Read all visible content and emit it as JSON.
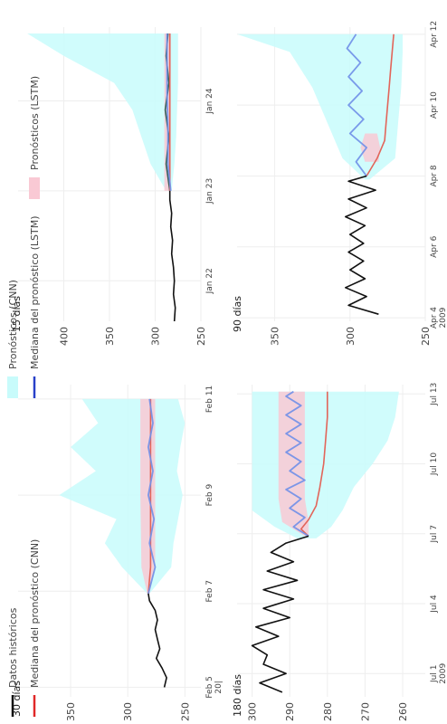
{
  "colors": {
    "history": "#111111",
    "cnn_median": "#e2655a",
    "lstm_median": "#6f8fe8",
    "cnn_band": "#c8fbfb",
    "lstm_band": "#f9c9d4",
    "grid": "#eeeeee"
  },
  "legend": {
    "placement": "bottom",
    "items": [
      {
        "label": "Datos históricos",
        "color": "#111111",
        "kind": "line"
      },
      {
        "label": "Mediana del pronóstico (CNN)",
        "color": "#e02828",
        "kind": "line"
      },
      {
        "label": "Mediana del pronóstico (LSTM)",
        "color": "#2840c8",
        "kind": "line"
      },
      {
        "label": "Pronósticos (CNN)",
        "color": "#c8fbfb",
        "kind": "band"
      },
      {
        "label": "Pronósticos (LSTM)",
        "color": "#f9c9d4",
        "kind": "band"
      }
    ]
  },
  "chart_data": [
    {
      "type": "line",
      "title": "180 días",
      "x_ticks": [
        "Jul 1\n2009",
        "Jul 4",
        "Jul 7",
        "Jul 10",
        "Jul 13"
      ],
      "y_ticks": [
        260,
        270,
        280,
        290,
        300
      ],
      "xlim": [
        0,
        13.4
      ],
      "ylim": [
        254,
        304
      ],
      "history": {
        "x": [
          0.2,
          0.6,
          1.0,
          1.4,
          1.8,
          2.2,
          2.6,
          3.0,
          3.4,
          3.8,
          4.2,
          4.6,
          5.0,
          5.4,
          5.8,
          6.2,
          6.6,
          6.9
        ],
        "y": [
          292,
          298,
          291,
          297,
          296,
          300,
          293,
          299,
          290,
          297,
          289,
          297,
          288,
          296,
          289,
          295,
          291,
          285
        ]
      },
      "cnn_median": {
        "x": [
          6.9,
          7.2,
          7.6,
          8.2,
          9.0,
          10.0,
          11.0,
          12.0,
          13.1
        ],
        "y": [
          285,
          287,
          285,
          283,
          282,
          281,
          280.5,
          280,
          280
        ]
      },
      "lstm_median": {
        "x": [
          6.9,
          7.3,
          7.7,
          8.1,
          8.5,
          8.9,
          9.3,
          9.7,
          10.1,
          10.5,
          10.9,
          11.3,
          11.7,
          12.1,
          12.5,
          12.9,
          13.1
        ],
        "y": [
          285,
          289,
          286,
          290,
          287,
          291,
          286,
          290,
          287,
          291,
          287,
          291,
          287,
          291,
          287,
          291,
          289
        ]
      },
      "cnn_band": {
        "x": [
          6.8,
          7.3,
          8.0,
          9.0,
          10.0,
          11.0,
          12.0,
          13.1
        ],
        "low": [
          283,
          279,
          276,
          273,
          268,
          264,
          262,
          261
        ],
        "high": [
          288,
          294,
          300,
          300,
          300,
          300,
          300,
          300
        ]
      },
      "lstm_band": {
        "x": [
          6.9,
          7.5,
          8.5,
          9.5,
          10.5,
          11.5,
          12.5,
          13.1
        ],
        "low": [
          285,
          285,
          286,
          286,
          286,
          286,
          286,
          286
        ],
        "high": [
          286,
          292,
          293,
          293,
          293,
          293,
          293,
          293
        ]
      }
    },
    {
      "type": "line",
      "title": "90 días",
      "x_ticks": [
        "Apr 4\n2009",
        "Apr 6",
        "Apr 8",
        "Apr 10",
        "Apr 12"
      ],
      "y_ticks": [
        250,
        300,
        350
      ],
      "xlim": [
        3.9,
        12.2
      ],
      "ylim": [
        250,
        375
      ],
      "history": {
        "x": [
          4.1,
          4.35,
          4.6,
          4.85,
          5.1,
          5.35,
          5.6,
          5.85,
          6.1,
          6.35,
          6.6,
          6.85,
          7.1,
          7.35,
          7.6,
          7.85,
          8.0
        ],
        "y": [
          281,
          301,
          289,
          303,
          290,
          300,
          291,
          301,
          291,
          300,
          290,
          303,
          289,
          301,
          283,
          301,
          289
        ]
      },
      "cnn_median": {
        "x": [
          8.0,
          8.5,
          9.0,
          9.5,
          10.0,
          10.5,
          11.0,
          11.5,
          12.0
        ],
        "y": [
          289,
          282,
          277,
          276,
          275,
          274,
          273,
          272,
          271
        ]
      },
      "lstm_median": {
        "x": [
          8.0,
          8.4,
          8.8,
          9.2,
          9.6,
          10.0,
          10.4,
          10.8,
          11.2,
          11.6,
          12.0
        ],
        "y": [
          289,
          296,
          289,
          300,
          291,
          301,
          292,
          301,
          293,
          302,
          296
        ]
      },
      "cnn_band": {
        "x": [
          7.9,
          8.5,
          9.5,
          10.5,
          11.5,
          12.0
        ],
        "low": [
          287,
          270,
          268,
          266,
          265,
          265
        ],
        "high": [
          290,
          305,
          315,
          325,
          340,
          375
        ]
      },
      "lstm_band": {
        "x": [
          8.4,
          8.8,
          9.2
        ],
        "low": [
          281,
          280,
          282
        ],
        "high": [
          290,
          293,
          290
        ]
      }
    },
    {
      "type": "line",
      "title": "30 días",
      "x_ticks": [
        "Feb 5\n20|",
        "Feb 7",
        "Feb 9",
        "Feb 11"
      ],
      "y_ticks": [
        250,
        300,
        350
      ],
      "xlim": [
        4.8,
        11.3
      ],
      "ylim": [
        236,
        396
      ],
      "history": {
        "x": [
          5.0,
          5.2,
          5.4,
          5.6,
          5.8,
          6.0,
          6.2,
          6.4,
          6.6,
          6.8,
          6.95
        ],
        "y": [
          268,
          266,
          270,
          275,
          272,
          274,
          276,
          274,
          276,
          281,
          282
        ]
      },
      "cnn_median": {
        "x": [
          6.95,
          7.5,
          8.5,
          9.5,
          10.5,
          11.0
        ],
        "y": [
          282,
          280,
          280,
          280,
          280,
          280
        ]
      },
      "lstm_median": {
        "x": [
          6.95,
          7.5,
          8.0,
          8.5,
          9.0,
          9.5,
          10.0,
          10.5,
          11.0
        ],
        "y": [
          282,
          276,
          281,
          277,
          282,
          278,
          282,
          278,
          281
        ]
      },
      "cnn_band": {
        "x": [
          6.95,
          7.5,
          8.0,
          8.5,
          9.0,
          9.5,
          10.0,
          10.5,
          11.0
        ],
        "low": [
          281,
          262,
          260,
          256,
          252,
          257,
          254,
          250,
          256
        ],
        "high": [
          283,
          305,
          320,
          310,
          360,
          328,
          350,
          326,
          340
        ]
      },
      "lstm_band": {
        "x": [
          6.95,
          7.5,
          9.0,
          11.0
        ],
        "low": [
          281,
          276,
          276,
          276
        ],
        "high": [
          283,
          288,
          289,
          289
        ]
      }
    },
    {
      "type": "line",
      "title": "15 días",
      "x_ticks": [
        "Jan 22",
        "Jan 23",
        "Jan 24"
      ],
      "y_ticks": [
        250,
        300,
        350,
        400
      ],
      "xlim": [
        21.55,
        24.82
      ],
      "ylim": [
        250,
        450
      ],
      "history": {
        "x": [
          21.55,
          21.7,
          21.85,
          22.0,
          22.15,
          22.3,
          22.45,
          22.6,
          22.75,
          22.9,
          23.0
        ],
        "y": [
          279,
          278,
          280,
          279,
          280,
          282,
          281,
          283,
          282,
          284,
          284
        ]
      },
      "cnn_median": {
        "x": [
          23.0,
          23.3,
          23.7,
          24.1,
          24.5,
          24.75
        ],
        "y": [
          284,
          284,
          284,
          284,
          284,
          284
        ]
      },
      "lstm_median": {
        "x": [
          23.0,
          23.3,
          23.7,
          24.1,
          24.5,
          24.75
        ],
        "y": [
          283,
          286,
          286,
          287,
          287,
          287
        ]
      },
      "hist_continue": {
        "x": [
          23.0,
          23.3,
          23.6,
          23.9,
          24.2,
          24.5,
          24.75
        ],
        "y": [
          284,
          288,
          285,
          289,
          285,
          288,
          286
        ]
      },
      "cnn_band": {
        "x": [
          23.0,
          23.3,
          23.6,
          23.9,
          24.2,
          24.5,
          24.75
        ],
        "low": [
          282,
          279,
          277,
          276,
          275,
          275,
          275
        ],
        "high": [
          288,
          305,
          315,
          325,
          345,
          400,
          440
        ]
      },
      "lstm_band": {
        "x": [
          23.0,
          24.75
        ],
        "low": [
          283,
          283
        ],
        "high": [
          290,
          290
        ]
      }
    }
  ]
}
